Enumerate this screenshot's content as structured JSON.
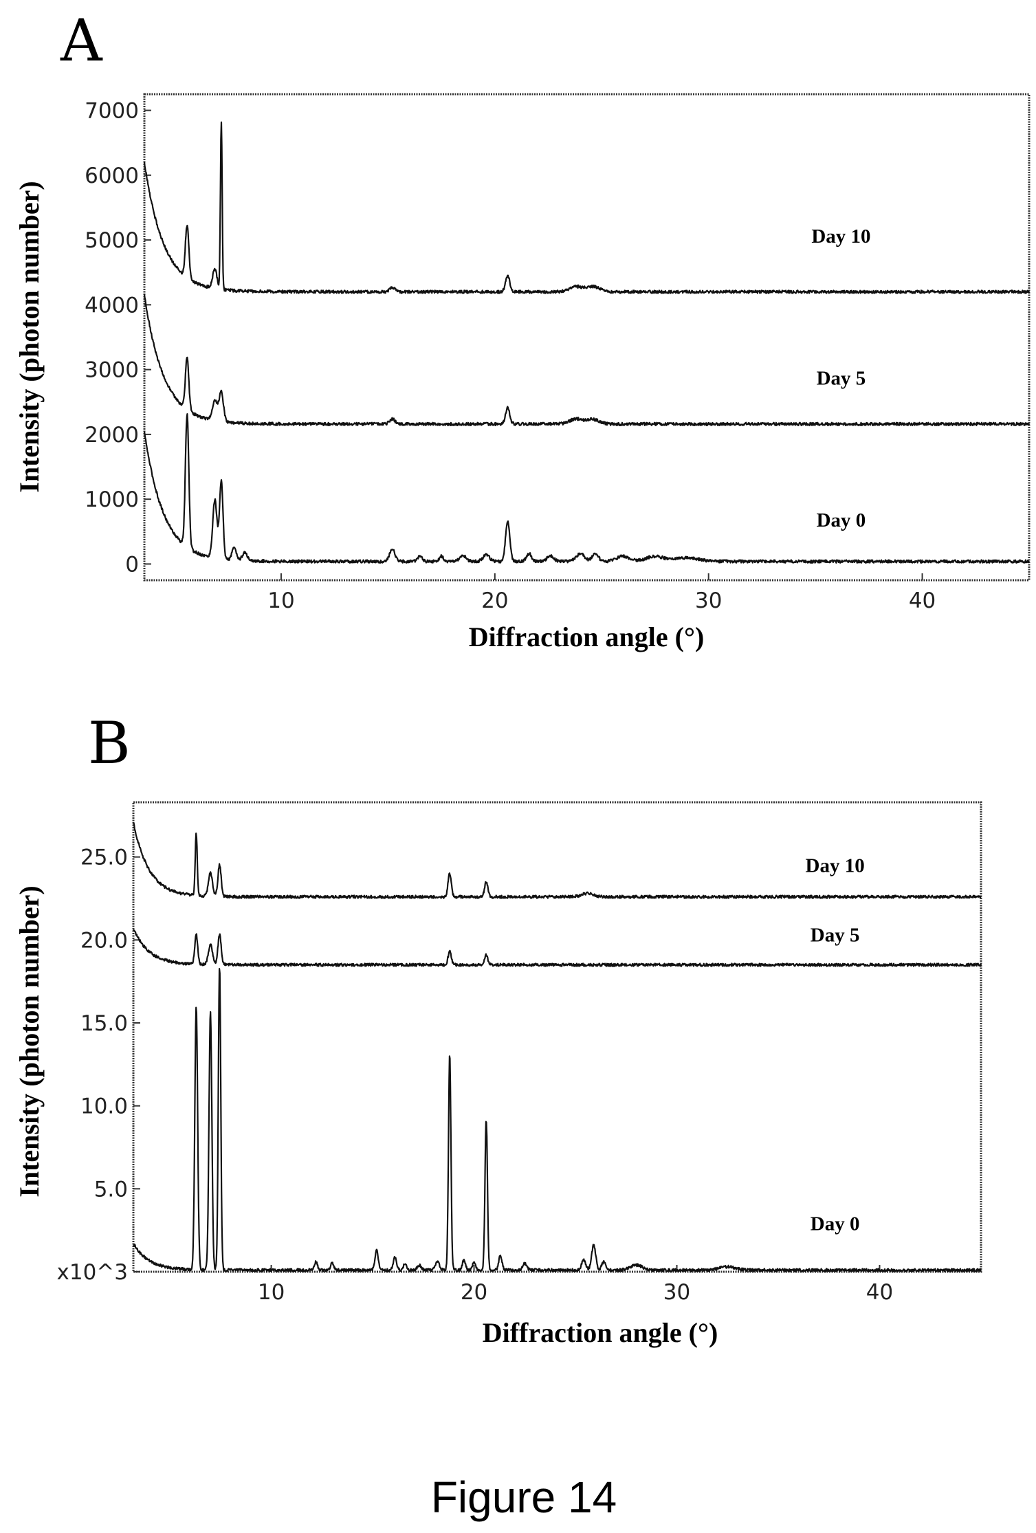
{
  "figure_caption": "Figure 14",
  "chart_data": [
    {
      "id": "A",
      "panel_label": "A",
      "type": "line",
      "xlabel": "Diffraction angle (°)",
      "ylabel": "Intensity (photon number)",
      "xlim": [
        3.6,
        45
      ],
      "ylim": [
        -250,
        7250
      ],
      "x_ticks": [
        10,
        20,
        30,
        40
      ],
      "y_ticks": [
        0,
        1000,
        2000,
        3000,
        4000,
        5000,
        6000,
        7000
      ],
      "y_tick_labels": [
        "0",
        "1000",
        "2000",
        "3000",
        "4000",
        "5000",
        "6000",
        "7000"
      ],
      "series_labels": [
        {
          "text": "Day 10",
          "x": 36.2,
          "y": 4960
        },
        {
          "text": "Day 5",
          "x": 36.2,
          "y": 2770
        },
        {
          "text": "Day 0",
          "x": 36.2,
          "y": 580
        }
      ],
      "series": [
        {
          "name": "Day 0",
          "baseline": 40,
          "decay": {
            "amp": 2000,
            "k": 1.1
          },
          "peaks": [
            [
              5.6,
              2050,
              0.08
            ],
            [
              6.9,
              900,
              0.1
            ],
            [
              7.2,
              1200,
              0.08
            ],
            [
              7.8,
              200,
              0.1
            ],
            [
              8.3,
              120,
              0.12
            ],
            [
              15.2,
              200,
              0.12
            ],
            [
              16.5,
              90,
              0.1
            ],
            [
              17.5,
              80,
              0.1
            ],
            [
              18.5,
              90,
              0.15
            ],
            [
              19.6,
              100,
              0.15
            ],
            [
              20.6,
              620,
              0.1
            ],
            [
              21.6,
              120,
              0.12
            ],
            [
              22.6,
              90,
              0.15
            ],
            [
              24.0,
              120,
              0.2
            ],
            [
              24.7,
              110,
              0.15
            ],
            [
              26.0,
              80,
              0.3
            ],
            [
              27.5,
              80,
              0.4
            ],
            [
              29.0,
              60,
              0.5
            ]
          ]
        },
        {
          "name": "Day 5",
          "baseline": 2160,
          "decay": {
            "amp": 2000,
            "k": 1.1
          },
          "peaks": [
            [
              5.6,
              800,
              0.08
            ],
            [
              6.9,
              300,
              0.12
            ],
            [
              7.2,
              450,
              0.1
            ],
            [
              15.2,
              80,
              0.12
            ],
            [
              20.6,
              250,
              0.1
            ],
            [
              23.8,
              80,
              0.3
            ],
            [
              24.6,
              70,
              0.3
            ]
          ]
        },
        {
          "name": "Day 10",
          "baseline": 4200,
          "decay": {
            "amp": 2000,
            "k": 1.1
          },
          "peaks": [
            [
              5.6,
              800,
              0.08
            ],
            [
              6.9,
              300,
              0.1
            ],
            [
              7.2,
              2600,
              0.04
            ],
            [
              15.2,
              70,
              0.12
            ],
            [
              20.6,
              250,
              0.1
            ],
            [
              23.8,
              80,
              0.3
            ],
            [
              24.6,
              80,
              0.3
            ]
          ]
        }
      ]
    },
    {
      "id": "B",
      "panel_label": "B",
      "type": "line",
      "xlabel": "Diffraction angle (°)",
      "ylabel": "Intensity (photon number)",
      "xlim": [
        3.2,
        45
      ],
      "ylim": [
        0,
        28.3
      ],
      "x_ticks": [
        10,
        20,
        30,
        40
      ],
      "y_ticks": [
        0,
        5,
        10,
        15,
        20,
        25
      ],
      "y_tick_labels": [
        "x10^3",
        "5.0",
        "10.0",
        "15.0",
        "20.0",
        "25.0"
      ],
      "series_labels": [
        {
          "text": "Day 10",
          "x": 37.8,
          "y": 24.1
        },
        {
          "text": "Day 5",
          "x": 37.8,
          "y": 19.9
        },
        {
          "text": "Day 0",
          "x": 37.8,
          "y": 2.5
        }
      ],
      "series": [
        {
          "name": "Day 0",
          "baseline": 0.1,
          "decay": {
            "amp": 1.6,
            "k": 1.3
          },
          "peaks": [
            [
              6.3,
              15.8,
              0.07
            ],
            [
              7.0,
              15.6,
              0.07
            ],
            [
              7.45,
              18.3,
              0.06
            ],
            [
              12.2,
              0.5,
              0.08
            ],
            [
              13.0,
              0.4,
              0.08
            ],
            [
              15.2,
              1.2,
              0.08
            ],
            [
              16.1,
              0.8,
              0.08
            ],
            [
              16.6,
              0.4,
              0.08
            ],
            [
              17.3,
              0.3,
              0.1
            ],
            [
              18.2,
              0.5,
              0.1
            ],
            [
              18.8,
              13.0,
              0.06
            ],
            [
              19.5,
              0.6,
              0.08
            ],
            [
              20.0,
              0.5,
              0.08
            ],
            [
              20.6,
              9.1,
              0.06
            ],
            [
              21.3,
              0.9,
              0.08
            ],
            [
              22.5,
              0.4,
              0.1
            ],
            [
              25.4,
              0.6,
              0.1
            ],
            [
              25.9,
              1.5,
              0.1
            ],
            [
              26.4,
              0.5,
              0.1
            ],
            [
              28.0,
              0.3,
              0.3
            ],
            [
              32.5,
              0.2,
              0.4
            ]
          ]
        },
        {
          "name": "Day 5",
          "baseline": 18.5,
          "decay": {
            "amp": 2.2,
            "k": 1.3
          },
          "peaks": [
            [
              6.3,
              1.8,
              0.07
            ],
            [
              7.0,
              1.2,
              0.1
            ],
            [
              7.45,
              1.8,
              0.08
            ],
            [
              18.8,
              0.8,
              0.08
            ],
            [
              20.6,
              0.6,
              0.08
            ]
          ]
        },
        {
          "name": "Day 10",
          "baseline": 22.6,
          "decay": {
            "amp": 4.5,
            "k": 1.3
          },
          "peaks": [
            [
              6.3,
              3.7,
              0.05
            ],
            [
              7.0,
              1.4,
              0.1
            ],
            [
              7.45,
              1.9,
              0.08
            ],
            [
              18.8,
              1.4,
              0.08
            ],
            [
              20.6,
              0.9,
              0.08
            ],
            [
              25.6,
              0.2,
              0.3
            ]
          ]
        }
      ]
    }
  ]
}
